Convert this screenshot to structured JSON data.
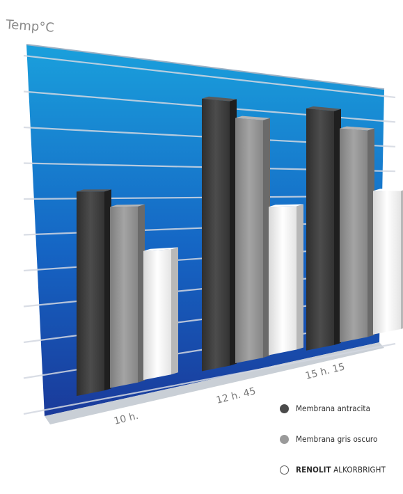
{
  "chart_data": {
    "type": "bar",
    "ylabel": "Temp°C",
    "categories": [
      "10 h.",
      "12 h. 45",
      "15 h. 15"
    ],
    "series": [
      {
        "name": "Membrana antracita",
        "values": [
          67,
          100,
          100
        ],
        "color": "#4a4a4a"
      },
      {
        "name": "Membrana gris oscuro",
        "values": [
          62,
          94,
          93
        ],
        "color": "#8f8f8f"
      },
      {
        "name": "RENOLIT ALKORBRIGHT",
        "values": [
          47,
          61,
          67
        ],
        "color": "#f2f2f2"
      }
    ],
    "ylim": [
      0,
      108
    ],
    "grid": true,
    "legend": "bottom-right",
    "background": "blue-gradient"
  },
  "legend": {
    "items": [
      {
        "label": "Membrana antracita",
        "color": "#4a4a4a"
      },
      {
        "label": "Membrana gris oscuro",
        "color": "#9a9a9a"
      },
      {
        "brand": "RENOLIT",
        "label": "ALKORBRIGHT",
        "color": "#ffffff"
      }
    ]
  }
}
